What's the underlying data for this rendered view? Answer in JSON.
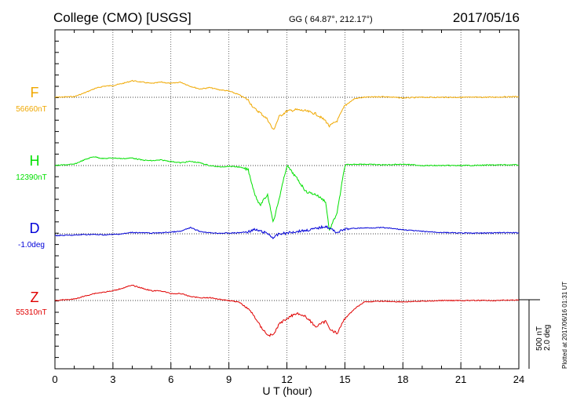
{
  "header": {
    "station": "College (CMO)  [USGS]",
    "coords": "GG ( 64.87°, 212.17°)",
    "date": "2017/05/16"
  },
  "side_note": "Plotted at 2017/06/16 01:31  UT",
  "scale": {
    "nt": "500 nT",
    "deg": "2.0 deg"
  },
  "colors": {
    "F": "#f0a800",
    "H": "#00e000",
    "D": "#0000d8",
    "Z": "#e00000"
  },
  "chart_data": {
    "type": "line",
    "title": "College (CMO)  [USGS]",
    "xlabel": "U T (hour)",
    "ylabel": "",
    "xlim": [
      0,
      24
    ],
    "xticks": [
      "0",
      "3",
      "6",
      "9",
      "12",
      "15",
      "18",
      "21",
      "24"
    ],
    "grid": true,
    "series": [
      {
        "name": "F",
        "baseline_label": "56660nT",
        "units": "nT",
        "x": [
          0,
          1,
          1.5,
          2,
          2.5,
          3,
          3.5,
          4,
          4.5,
          5,
          5.5,
          6,
          6.5,
          7,
          7.5,
          8,
          8.5,
          9,
          9.5,
          10,
          10.3,
          10.6,
          11,
          11.3,
          11.6,
          12,
          12.5,
          13,
          13.5,
          14,
          14.2,
          14.6,
          15,
          15.5,
          16,
          17,
          18,
          19,
          20,
          21,
          22,
          23,
          24
        ],
        "y": [
          56660,
          56665,
          56690,
          56720,
          56740,
          56745,
          56760,
          56780,
          56770,
          56760,
          56770,
          56760,
          56770,
          56740,
          56720,
          56730,
          56715,
          56705,
          56680,
          56640,
          56580,
          56550,
          56500,
          56420,
          56520,
          56560,
          56570,
          56560,
          56540,
          56490,
          56450,
          56490,
          56600,
          56650,
          56660,
          56665,
          56655,
          56660,
          56660,
          56660,
          56660,
          56662,
          56665
        ]
      },
      {
        "name": "H",
        "baseline_label": "12390nT",
        "units": "nT",
        "x": [
          0,
          1,
          1.5,
          2,
          2.5,
          3,
          3.5,
          4,
          4.5,
          5,
          5.5,
          6,
          6.5,
          7,
          7.5,
          8,
          8.5,
          9,
          9.5,
          10,
          10.3,
          10.6,
          11,
          11.3,
          11.6,
          12,
          12.5,
          13,
          13.5,
          14,
          14.2,
          14.6,
          15,
          15.5,
          16,
          17,
          18,
          19,
          20,
          21,
          22,
          23,
          24
        ],
        "y": [
          12390,
          12400,
          12430,
          12455,
          12440,
          12445,
          12440,
          12445,
          12430,
          12425,
          12430,
          12420,
          12410,
          12420,
          12410,
          12390,
          12380,
          12385,
          12380,
          12360,
          12200,
          12100,
          12180,
          11980,
          12150,
          12390,
          12300,
          12200,
          12180,
          12130,
          11920,
          12050,
          12390,
          12400,
          12400,
          12395,
          12400,
          12390,
          12390,
          12390,
          12392,
          12395,
          12395
        ]
      },
      {
        "name": "D",
        "baseline_label": "-1.0deg",
        "units": "deg",
        "x": [
          0,
          1,
          1.5,
          2,
          2.5,
          3,
          3.5,
          4,
          4.5,
          5,
          5.5,
          6,
          6.5,
          7,
          7.5,
          8,
          8.5,
          9,
          9.5,
          10,
          10.3,
          10.6,
          11,
          11.3,
          11.6,
          12,
          12.5,
          13,
          13.5,
          14,
          14.2,
          14.6,
          15,
          15.5,
          16,
          17,
          18,
          19,
          20,
          21,
          22,
          23,
          24
        ],
        "y": [
          -1.05,
          -1.04,
          -1.02,
          -1.02,
          -1.03,
          -1.02,
          -1.0,
          -0.96,
          -0.97,
          -0.98,
          -0.97,
          -0.95,
          -0.93,
          -0.82,
          -0.93,
          -0.97,
          -0.98,
          -0.98,
          -0.97,
          -0.94,
          -0.88,
          -0.92,
          -0.99,
          -1.12,
          -1.0,
          -0.98,
          -0.93,
          -0.9,
          -0.85,
          -0.78,
          -0.84,
          -0.96,
          -0.87,
          -0.84,
          -0.83,
          -0.82,
          -0.88,
          -0.93,
          -0.96,
          -0.98,
          -0.98,
          -0.97,
          -0.97
        ]
      },
      {
        "name": "Z",
        "baseline_label": "55310nT",
        "units": "nT",
        "x": [
          0,
          1,
          1.5,
          2,
          2.5,
          3,
          3.5,
          4,
          4.5,
          5,
          5.5,
          6,
          6.5,
          7,
          7.5,
          8,
          8.5,
          9,
          9.5,
          10,
          10.3,
          10.6,
          11,
          11.3,
          11.6,
          12,
          12.5,
          13,
          13.5,
          14,
          14.2,
          14.6,
          15,
          15.5,
          16,
          17,
          18,
          19,
          20,
          21,
          22,
          23,
          24
        ],
        "y": [
          55310,
          55320,
          55340,
          55360,
          55370,
          55380,
          55400,
          55420,
          55400,
          55380,
          55380,
          55360,
          55360,
          55340,
          55330,
          55330,
          55320,
          55310,
          55300,
          55250,
          55200,
          55130,
          55060,
          55060,
          55140,
          55180,
          55220,
          55190,
          55120,
          55160,
          55110,
          55070,
          55180,
          55250,
          55300,
          55305,
          55300,
          55305,
          55310,
          55310,
          55310,
          55310,
          55315
        ]
      }
    ],
    "scale_bar": {
      "nT": 500,
      "deg": 2.0
    }
  }
}
